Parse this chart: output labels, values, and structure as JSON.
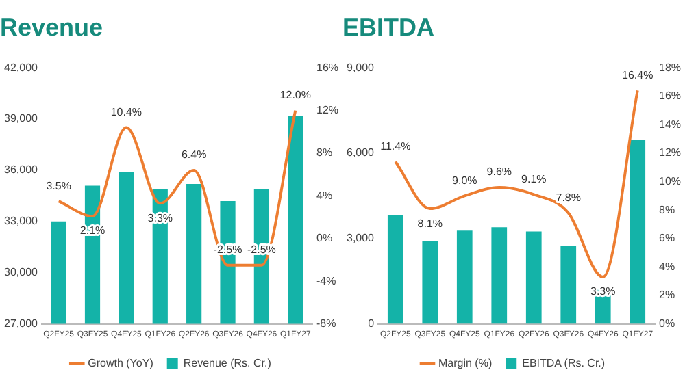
{
  "chart_data": [
    {
      "type": "bar",
      "title": "Revenue",
      "categories": [
        "Q2FY25",
        "Q3FY25",
        "Q4FY25",
        "Q1FY26",
        "Q2FY26",
        "Q3FY26",
        "Q4FY26",
        "Q1FY27"
      ],
      "series": [
        {
          "name": "Revenue (Rs. Cr.)",
          "color": "#14b3a8",
          "values": [
            33000,
            35100,
            35900,
            34900,
            35200,
            34200,
            34900,
            39200
          ]
        },
        {
          "name": "Growth (YoY)",
          "type": "line",
          "axis": "y2",
          "color": "#ed7d31",
          "marker": "none",
          "values": [
            3.5,
            2.1,
            10.4,
            3.3,
            6.4,
            -2.5,
            -2.5,
            12.0
          ],
          "value_labels": [
            "3.5%",
            "2.1%",
            "10.4%",
            "3.3%",
            "6.4%",
            "-2.5%",
            "-2.5%",
            "12.0%"
          ]
        }
      ],
      "ylim": [
        27000,
        42000
      ],
      "yticks": [
        {
          "value": 27000,
          "label": "27,000"
        },
        {
          "value": 30000,
          "label": "30,000"
        },
        {
          "value": 33000,
          "label": "33,000"
        },
        {
          "value": 36000,
          "label": "36,000"
        },
        {
          "value": 39000,
          "label": "39,000"
        },
        {
          "value": 42000,
          "label": "42,000"
        }
      ],
      "y2lim": [
        -8,
        16
      ],
      "y2ticks": [
        {
          "value": -8,
          "label": "-8%"
        },
        {
          "value": -4,
          "label": "-4%"
        },
        {
          "value": 0,
          "label": "0%"
        },
        {
          "value": 4,
          "label": "4%"
        },
        {
          "value": 8,
          "label": "8%"
        },
        {
          "value": 12,
          "label": "12%"
        },
        {
          "value": 16,
          "label": "16%"
        }
      ],
      "grid": false,
      "legend": "bottom"
    },
    {
      "type": "bar",
      "title": "EBITDA",
      "categories": [
        "Q2FY25",
        "Q3FY25",
        "Q4FY25",
        "Q1FY26",
        "Q2FY26",
        "Q3FY26",
        "Q4FY26",
        "Q1FY27"
      ],
      "series": [
        {
          "name": "EBITDA (Rs. Cr.)",
          "color": "#14b3a8",
          "values": [
            3830,
            2910,
            3280,
            3400,
            3250,
            2740,
            1210,
            6480
          ]
        },
        {
          "name": "Margin (%)",
          "type": "line",
          "axis": "y2",
          "color": "#ed7d31",
          "marker": "none",
          "values": [
            11.4,
            8.1,
            9.0,
            9.6,
            9.1,
            7.8,
            3.3,
            16.4
          ],
          "value_labels": [
            "11.4%",
            "8.1%",
            "9.0%",
            "9.6%",
            "9.1%",
            "7.8%",
            "3.3%",
            "16.4%"
          ]
        }
      ],
      "ylim": [
        0,
        9000
      ],
      "yticks": [
        0,
        {
          "value": 3000,
          "label": "3,000"
        },
        {
          "value": 6000,
          "label": "6,000"
        },
        {
          "value": 9000,
          "label": "9,000"
        }
      ],
      "y2lim": [
        0,
        18
      ],
      "y2ticks": [
        {
          "value": 0,
          "label": "0%"
        },
        {
          "value": 2,
          "label": "2%"
        },
        {
          "value": 4,
          "label": "4%"
        },
        {
          "value": 6,
          "label": "6%"
        },
        {
          "value": 8,
          "label": "8%"
        },
        {
          "value": 10,
          "label": "10%"
        },
        {
          "value": 12,
          "label": "12%"
        },
        {
          "value": 14,
          "label": "14%"
        },
        {
          "value": 16,
          "label": "16%"
        },
        {
          "value": 18,
          "label": "18%"
        }
      ],
      "grid": false,
      "legend": "bottom"
    }
  ]
}
